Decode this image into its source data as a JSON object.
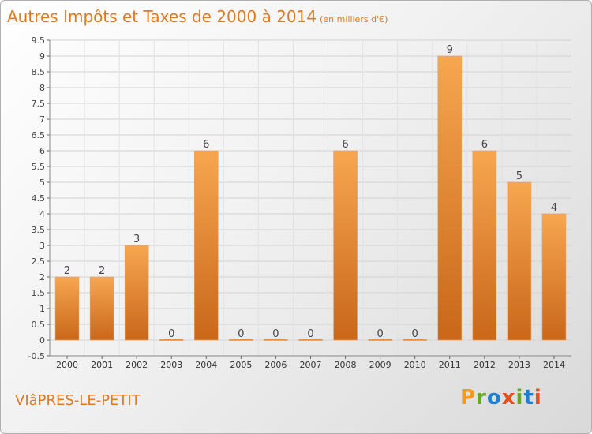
{
  "header": {
    "title": "Autres Impôts et Taxes de 2000 à 2014",
    "subtitle": "(en milliers d'€)"
  },
  "footer": {
    "commune": "VIâPRES-LE-PETIT",
    "logo": "Proxiti"
  },
  "colors": {
    "title": "#e07a1f",
    "bar_light": "#f7a650",
    "bar_dark": "#c9671a",
    "logo": [
      "#f39a1e",
      "#6aa823",
      "#1d7fd1",
      "#e84d1a",
      "#6aa823",
      "#1d7fd1",
      "#e84d1a"
    ]
  },
  "chart_data": {
    "type": "bar",
    "title": "Autres Impôts et Taxes de 2000 à 2014",
    "subtitle": "(en milliers d'€)",
    "categories": [
      "2000",
      "2001",
      "2002",
      "2003",
      "2004",
      "2005",
      "2006",
      "2007",
      "2008",
      "2009",
      "2010",
      "2011",
      "2012",
      "2013",
      "2014"
    ],
    "values": [
      2,
      2,
      3,
      0,
      6,
      0,
      0,
      0,
      6,
      0,
      0,
      9,
      6,
      5,
      4
    ],
    "value_labels": [
      "2",
      "2",
      "3",
      "0",
      "6",
      "0",
      "0",
      "0",
      "6",
      "0",
      "0",
      "9",
      "6",
      "5",
      "4"
    ],
    "y_ticks": [
      "-0.5",
      "0",
      "0.5",
      "1",
      "1.5",
      "2",
      "2.5",
      "3",
      "3.5",
      "4",
      "4.5",
      "5",
      "5.5",
      "6",
      "6.5",
      "7",
      "7.5",
      "8",
      "8.5",
      "9",
      "9.5"
    ],
    "ylim": [
      -0.5,
      9.5
    ],
    "grid": true,
    "legend": "none"
  }
}
